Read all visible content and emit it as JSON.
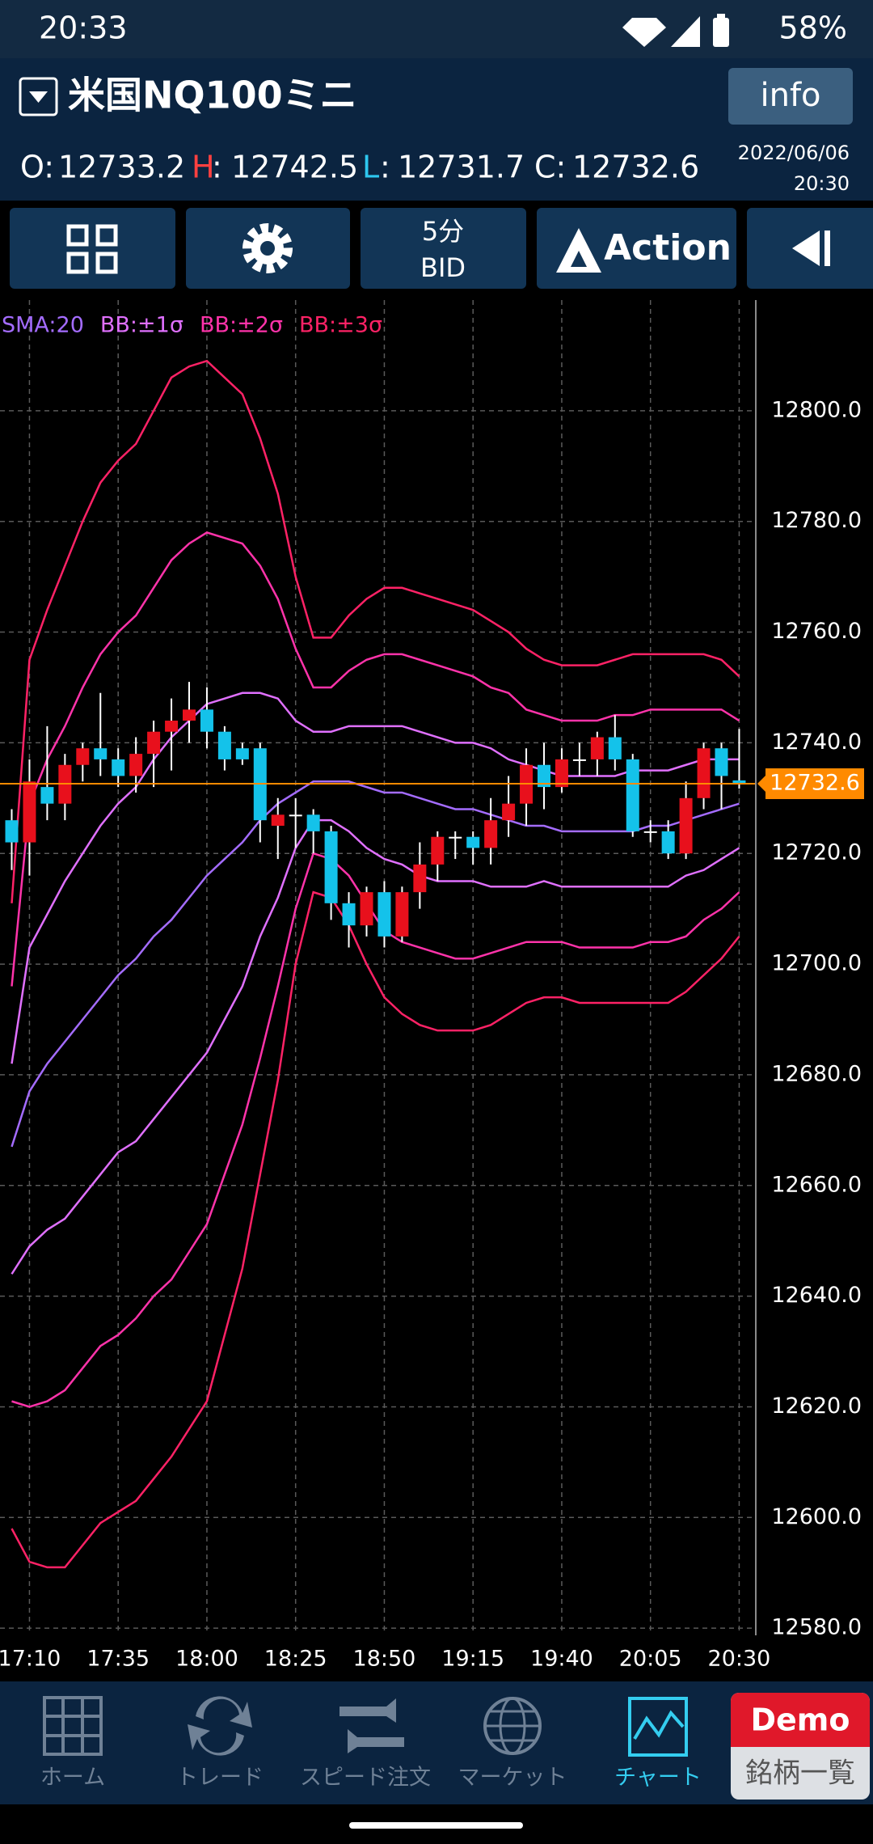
{
  "status_bar": {
    "time": "20:33",
    "battery": "58%"
  },
  "header": {
    "symbol": "米国NQ100ミニ",
    "info_button": "info"
  },
  "ohlc": {
    "o_label": "O:",
    "h_label": "H",
    "l_label": "L",
    "c_label": "C:",
    "separator": ":",
    "date": "2022/06/06",
    "time": "20:30"
  },
  "toolbar": {
    "interval": "5分",
    "price_type": "BID",
    "action": "Action"
  },
  "chart_data": {
    "type": "candlestick",
    "categories": [
      null,
      "17:10",
      null,
      null,
      null,
      null,
      "17:35",
      null,
      null,
      null,
      null,
      "18:00",
      null,
      null,
      null,
      null,
      "18:25",
      null,
      null,
      null,
      null,
      "18:50",
      null,
      null,
      null,
      null,
      "19:15",
      null,
      null,
      null,
      null,
      "19:40",
      null,
      null,
      null,
      null,
      "20:05",
      null,
      null,
      null,
      null,
      "20:30"
    ],
    "open": [
      12726,
      12722,
      12732,
      12729,
      12736,
      12739,
      12737,
      12734,
      12738,
      12742,
      12744,
      12746,
      12742,
      12739,
      12739,
      12725,
      12727,
      12727,
      12724,
      12711,
      12707,
      12713,
      12705,
      12713,
      12718,
      12723,
      12723,
      12721,
      12726,
      12729,
      12736,
      12732,
      12737,
      12737,
      12741,
      12737,
      12724,
      12724,
      12720,
      12730,
      12739,
      12733.2
    ],
    "high": [
      12728,
      12737,
      12743,
      12738,
      12740,
      12749,
      12739,
      12741,
      12744,
      12748,
      12751,
      12750,
      12743,
      12740,
      12740,
      12730,
      12730,
      12728,
      12725,
      12713,
      12714,
      12715,
      12714,
      12722,
      12724,
      12724,
      12724,
      12730,
      12734,
      12739,
      12740,
      12739,
      12740,
      12742,
      12745,
      12738,
      12726,
      12726,
      12733,
      12740,
      12740,
      12742.5
    ],
    "low": [
      12717,
      12716,
      12726,
      12726,
      12733,
      12734,
      12732,
      12731,
      12732,
      12735,
      12740,
      12739,
      12735,
      12736,
      12722,
      12719,
      12721,
      12720,
      12708,
      12703,
      12705,
      12703,
      12704,
      12710,
      12715,
      12719,
      12718,
      12718,
      12723,
      12725,
      12728,
      12731,
      12734,
      12734,
      12735,
      12723,
      12722,
      12719,
      12719,
      12728,
      12728,
      12731.7
    ],
    "close": [
      12722,
      12733,
      12729,
      12736,
      12739,
      12737,
      12734,
      12738,
      12742,
      12744,
      12746,
      12742,
      12737,
      12737,
      12726,
      12727,
      12727,
      12724,
      12711,
      12707,
      12713,
      12705,
      12713,
      12718,
      12723,
      12723,
      12721,
      12726,
      12729,
      12736,
      12732,
      12737,
      12737,
      12741,
      12737,
      12724,
      12724,
      12720,
      12730,
      12739,
      12734,
      12732.6
    ],
    "up_color": "#e8101c",
    "down_color": "#14c2ea",
    "flat_color": "#ffffff",
    "series": [
      {
        "name": "SMA:20",
        "color": "#a46cff",
        "values": [
          12667,
          12677,
          12682,
          12686,
          12690,
          12694,
          12698,
          12701,
          12705,
          12708,
          12712,
          12716,
          12719,
          12722,
          12726,
          12729,
          12731,
          12733,
          12733,
          12733,
          12732,
          12731,
          12731,
          12730,
          12729,
          12728,
          12728,
          12727,
          12726,
          12725,
          12725,
          12724,
          12724,
          12724,
          12724,
          12724,
          12725,
          12725,
          12726,
          12727,
          12728,
          12729
        ]
      },
      {
        "name": "BB:±1σ",
        "color": "#e070ff",
        "upper": [
          12682,
          12703,
          12709,
          12715,
          12720,
          12725,
          12729,
          12732,
          12737,
          12741,
          12744,
          12747,
          12748,
          12749,
          12749,
          12748,
          12744,
          12742,
          12742,
          12743,
          12743,
          12743,
          12743,
          12742,
          12741,
          12740,
          12740,
          12739,
          12737,
          12736,
          12735,
          12734,
          12734,
          12734,
          12734,
          12735,
          12735,
          12735,
          12736,
          12737,
          12737,
          12737
        ],
        "lower": [
          12644,
          12649,
          12652,
          12654,
          12658,
          12662,
          12666,
          12668,
          12672,
          12676,
          12680,
          12684,
          12690,
          12696,
          12705,
          12712,
          12721,
          12726,
          12726,
          12724,
          12721,
          12719,
          12718,
          12716,
          12715,
          12715,
          12715,
          12714,
          12714,
          12714,
          12715,
          12714,
          12714,
          12714,
          12714,
          12714,
          12714,
          12714,
          12716,
          12717,
          12719,
          12721
        ]
      },
      {
        "name": "BB:±2σ",
        "color": "#ff33aa",
        "upper": [
          12696,
          12729,
          12737,
          12743,
          12750,
          12756,
          12760,
          12763,
          12768,
          12773,
          12776,
          12778,
          12777,
          12776,
          12772,
          12766,
          12757,
          12750,
          12750,
          12753,
          12755,
          12756,
          12756,
          12755,
          12754,
          12753,
          12752,
          12750,
          12749,
          12746,
          12745,
          12744,
          12744,
          12744,
          12745,
          12745,
          12746,
          12746,
          12746,
          12746,
          12746,
          12744
        ],
        "lower": [
          12621,
          12620,
          12621,
          12623,
          12627,
          12631,
          12633,
          12636,
          12640,
          12643,
          12648,
          12653,
          12662,
          12671,
          12683,
          12696,
          12710,
          12720,
          12719,
          12716,
          12711,
          12706,
          12704,
          12703,
          12702,
          12701,
          12701,
          12702,
          12703,
          12704,
          12704,
          12704,
          12703,
          12703,
          12703,
          12703,
          12704,
          12704,
          12705,
          12708,
          12710,
          12713
        ]
      },
      {
        "name": "BB:±3σ",
        "color": "#ff2266",
        "upper": [
          12711,
          12755,
          12764,
          12772,
          12780,
          12787,
          12791,
          12794,
          12800,
          12806,
          12808,
          12809,
          12806,
          12803,
          12795,
          12785,
          12770,
          12759,
          12759,
          12763,
          12766,
          12768,
          12768,
          12767,
          12766,
          12765,
          12764,
          12762,
          12760,
          12757,
          12755,
          12754,
          12754,
          12754,
          12755,
          12756,
          12756,
          12756,
          12756,
          12756,
          12755,
          12752
        ],
        "lower": [
          12598,
          12592,
          12591,
          12591,
          12595,
          12599,
          12601,
          12603,
          12607,
          12611,
          12616,
          12621,
          12633,
          12645,
          12662,
          12679,
          12700,
          12713,
          12712,
          12707,
          12700,
          12694,
          12691,
          12689,
          12688,
          12688,
          12688,
          12689,
          12691,
          12693,
          12694,
          12694,
          12693,
          12693,
          12693,
          12693,
          12693,
          12693,
          12695,
          12698,
          12701,
          12705
        ]
      }
    ],
    "ylim": [
      12579,
      12820
    ],
    "yticks": [
      {
        "value": 12800,
        "label": "12800.0"
      },
      {
        "value": 12780,
        "label": "12780.0"
      },
      {
        "value": 12760,
        "label": "12760.0"
      },
      {
        "value": 12740,
        "label": "12740.0"
      },
      {
        "value": 12720,
        "label": "12720.0"
      },
      {
        "value": 12700,
        "label": "12700.0"
      },
      {
        "value": 12680,
        "label": "12680.0"
      },
      {
        "value": 12660,
        "label": "12660.0"
      },
      {
        "value": 12640,
        "label": "12640.0"
      },
      {
        "value": 12620,
        "label": "12620.0"
      },
      {
        "value": 12600,
        "label": "12600.0"
      },
      {
        "value": 12580,
        "label": "12580.0"
      }
    ],
    "grid": true,
    "price_line_color": "#ff8a00"
  },
  "nav": {
    "items": [
      "ホーム",
      "トレード",
      "スピード注文",
      "マーケット",
      "チャート"
    ]
  },
  "badge": {
    "top": "Demo",
    "bottom": "銘柄一覧"
  }
}
